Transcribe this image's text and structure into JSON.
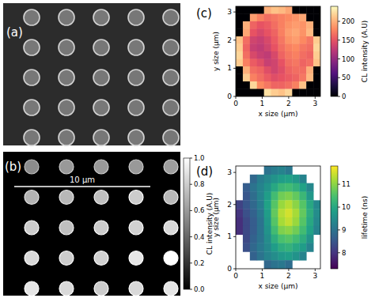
{
  "chart_data": [
    {
      "type": "image",
      "title": "(a)",
      "color": "gray",
      "cells": [
        [
          0.62,
          0.62,
          0.63,
          0.62,
          0.62
        ],
        [
          0.63,
          0.62,
          0.62,
          0.63,
          0.62
        ],
        [
          0.62,
          0.63,
          0.62,
          0.62,
          0.63
        ],
        [
          0.63,
          0.62,
          0.63,
          0.62,
          0.62
        ],
        [
          0.62,
          0.62,
          0.62,
          0.63,
          0.62
        ]
      ]
    },
    {
      "type": "heatmap",
      "title": "(b)",
      "annotation": "10 µm",
      "color": "gray",
      "cells": [
        [
          0.55,
          0.6,
          0.6,
          0.6,
          0.62
        ],
        [
          0.7,
          0.72,
          0.75,
          0.8,
          0.72
        ],
        [
          0.8,
          0.75,
          0.8,
          0.82,
          0.85
        ],
        [
          0.85,
          0.8,
          0.82,
          0.9,
          1.0
        ],
        [
          0.9,
          0.85,
          0.8,
          0.85,
          0.9
        ]
      ],
      "colorbar": {
        "label": "CL intensity (A.U)",
        "range": [
          0,
          1
        ],
        "ticks": [
          {
            "value": 0,
            "label": "0.0"
          },
          0.2,
          0.4,
          0.6,
          0.8,
          {
            "value": 1,
            "label": "1.0"
          }
        ]
      }
    },
    {
      "type": "heatmap",
      "title": "(c)",
      "x_label": "x size (µm)",
      "y_label": "y size (µm)",
      "color": "magma",
      "xlim": [
        0,
        3.2
      ],
      "ylim": [
        0,
        3.2
      ],
      "xticks": [
        0,
        1,
        2,
        3
      ],
      "yticks": [
        0,
        1,
        2,
        3
      ],
      "cells": [
        [
          0,
          0,
          0,
          0,
          200,
          210,
          205,
          195,
          0,
          0,
          0,
          0
        ],
        [
          0,
          0,
          190,
          175,
          165,
          170,
          175,
          180,
          185,
          195,
          0,
          0
        ],
        [
          0,
          200,
          160,
          150,
          155,
          165,
          175,
          185,
          190,
          185,
          200,
          0
        ],
        [
          0,
          195,
          150,
          140,
          150,
          160,
          175,
          190,
          195,
          185,
          205,
          0
        ],
        [
          210,
          165,
          135,
          130,
          140,
          155,
          170,
          185,
          190,
          180,
          170,
          215
        ],
        [
          215,
          160,
          130,
          125,
          135,
          150,
          165,
          175,
          180,
          170,
          165,
          220
        ],
        [
          220,
          165,
          140,
          130,
          125,
          140,
          160,
          170,
          175,
          165,
          160,
          215
        ],
        [
          215,
          175,
          155,
          145,
          130,
          135,
          150,
          165,
          170,
          160,
          165,
          210
        ],
        [
          0,
          200,
          165,
          160,
          145,
          135,
          145,
          160,
          165,
          165,
          200,
          0
        ],
        [
          0,
          215,
          175,
          165,
          155,
          145,
          150,
          155,
          160,
          170,
          205,
          0
        ],
        [
          0,
          0,
          220,
          180,
          170,
          160,
          160,
          165,
          175,
          210,
          0,
          0
        ],
        [
          0,
          0,
          0,
          0,
          225,
          215,
          210,
          220,
          0,
          0,
          0,
          0
        ]
      ],
      "colorbar": {
        "label": "CL intensity (A.U)",
        "range": [
          0,
          240
        ],
        "ticks": [
          0,
          50,
          100,
          150,
          200
        ]
      }
    },
    {
      "type": "heatmap",
      "title": "(d)",
      "x_label": "x size (µm)",
      "y_label": "y size (µm)",
      "color": "viridis",
      "xlim": [
        0,
        3.2
      ],
      "ylim": [
        0,
        3.2
      ],
      "xticks": [
        0,
        1,
        2,
        3
      ],
      "yticks": [
        0,
        1,
        2,
        3
      ],
      "cells": [
        [
          null,
          null,
          null,
          null,
          9.0,
          9.2,
          9.3,
          9.1,
          null,
          null,
          null,
          null
        ],
        [
          null,
          null,
          8.8,
          9.2,
          9.4,
          9.6,
          9.8,
          9.9,
          9.7,
          9.3,
          null,
          null
        ],
        [
          null,
          8.6,
          9.0,
          9.3,
          9.6,
          10.0,
          10.3,
          10.4,
          10.2,
          9.9,
          9.4,
          null
        ],
        [
          null,
          8.5,
          8.9,
          9.3,
          9.8,
          10.4,
          10.8,
          10.9,
          10.7,
          10.3,
          9.7,
          null
        ],
        [
          8.2,
          8.5,
          8.8,
          9.2,
          9.9,
          10.6,
          11.1,
          11.3,
          11.0,
          10.6,
          10.0,
          9.4
        ],
        [
          8.0,
          8.4,
          8.7,
          9.1,
          9.8,
          10.7,
          11.3,
          11.5,
          11.2,
          10.7,
          10.1,
          9.5
        ],
        [
          7.9,
          8.3,
          8.6,
          9.0,
          9.7,
          10.6,
          11.2,
          11.4,
          11.1,
          10.6,
          10.0,
          9.4
        ],
        [
          7.9,
          8.3,
          8.6,
          9.0,
          9.6,
          10.4,
          10.9,
          11.0,
          10.8,
          10.4,
          9.9,
          9.3
        ],
        [
          null,
          8.3,
          8.7,
          9.0,
          9.5,
          10.1,
          10.5,
          10.6,
          10.4,
          10.1,
          9.6,
          null
        ],
        [
          null,
          8.4,
          8.8,
          9.1,
          9.4,
          9.8,
          10.1,
          10.2,
          10.0,
          9.8,
          9.3,
          null
        ],
        [
          null,
          null,
          8.7,
          9.0,
          9.3,
          9.5,
          9.7,
          9.8,
          9.6,
          9.3,
          null,
          null
        ],
        [
          null,
          null,
          null,
          null,
          8.8,
          9.0,
          9.1,
          8.9,
          null,
          null,
          null,
          null
        ]
      ],
      "colorbar": {
        "label": "lifetime (ns)",
        "range": [
          7.3,
          11.8
        ],
        "ticks": [
          8,
          9,
          10,
          11
        ]
      }
    }
  ]
}
